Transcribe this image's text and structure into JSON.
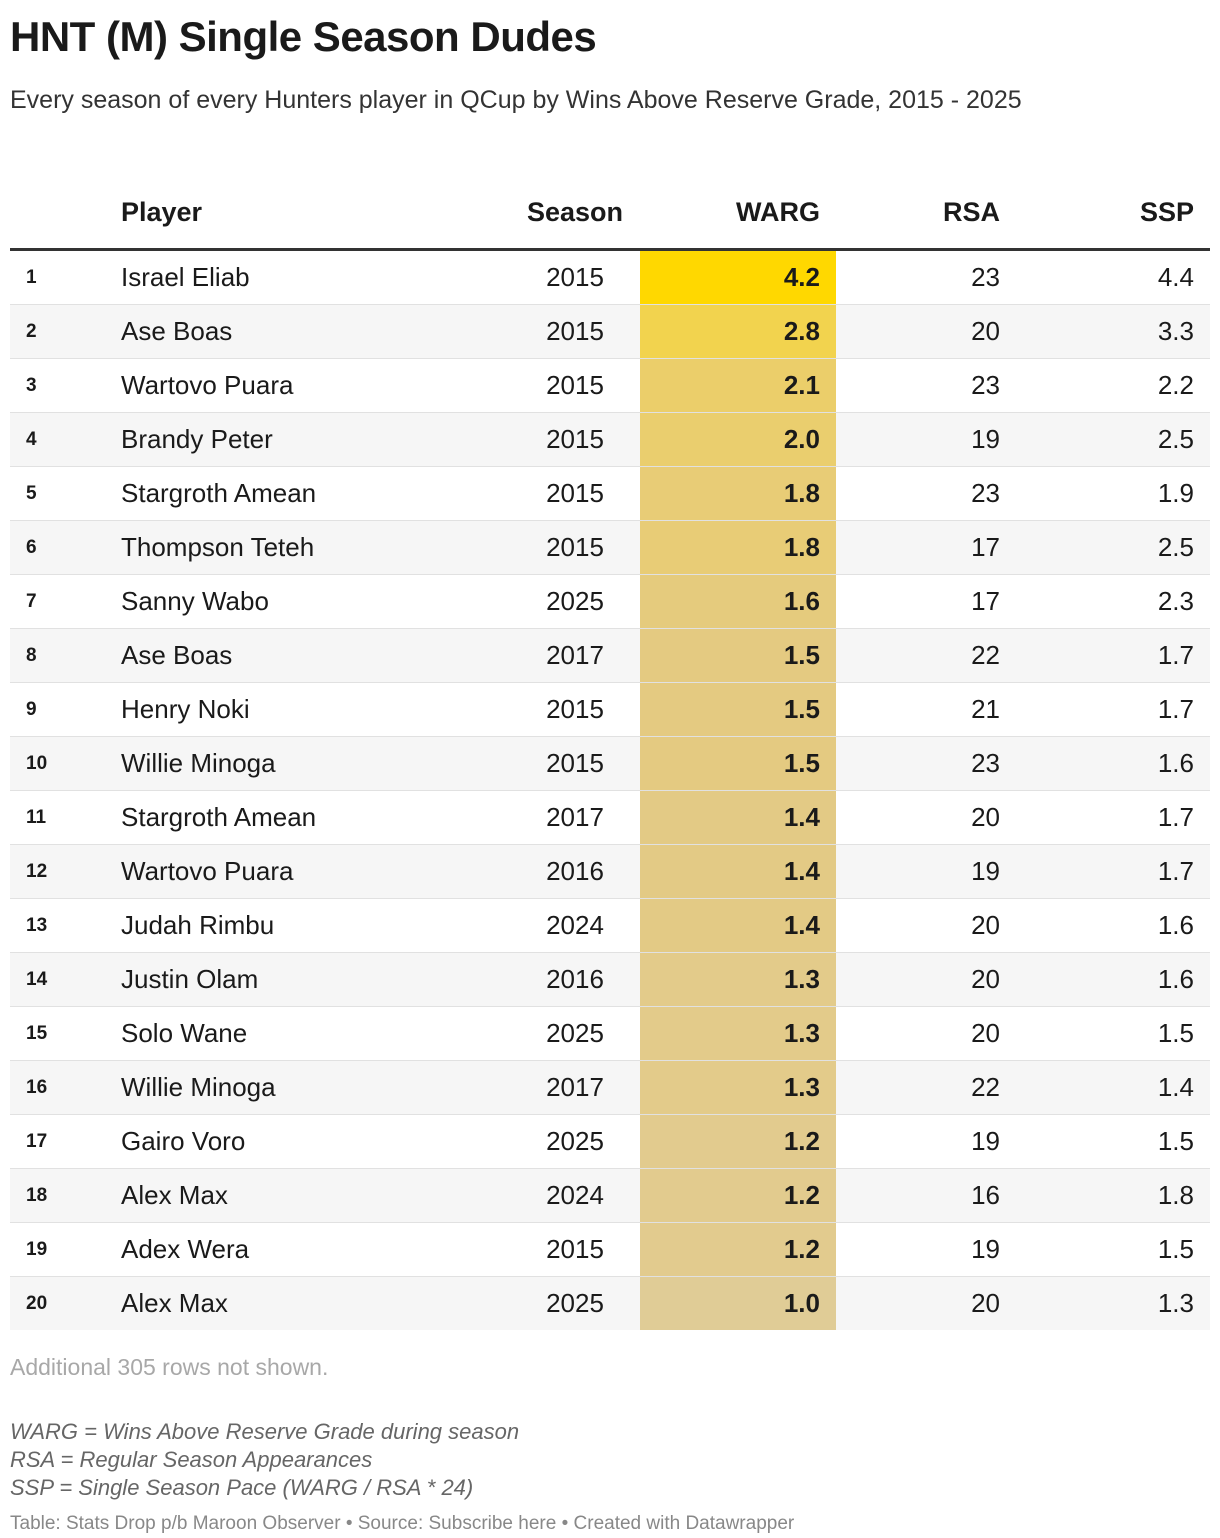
{
  "title": "HNT (M) Single Season Dudes",
  "subtitle": "Every season of every Hunters player in QCup by Wins Above Reserve Grade, 2015 - 2025",
  "note": "Additional 305 rows not shown.",
  "definitions": [
    "WARG = Wins Above Reserve Grade during season",
    "RSA = Regular Season Appearances",
    "SSP = Single Season Pace (WARG / RSA * 24)"
  ],
  "credit": "Table: Stats Drop p/b Maroon Observer • Source: Subscribe here • Created with Datawrapper",
  "colors": {
    "warg_max": "#ffd800",
    "warg_high": "#f2d350",
    "warg_mid": "#e4ca82",
    "warg_min": "#e0cc96",
    "header_rule": "#333333",
    "row_alt": "#f6f6f6"
  },
  "chart_data": {
    "type": "table",
    "columns": [
      "",
      "Player",
      "Season",
      "WARG",
      "RSA",
      "SSP"
    ],
    "rows": [
      {
        "rank": "1",
        "player": "Israel Eliab",
        "season": "2015",
        "warg": "4.2",
        "rsa": "23",
        "ssp": "4.4"
      },
      {
        "rank": "2",
        "player": "Ase Boas",
        "season": "2015",
        "warg": "2.8",
        "rsa": "20",
        "ssp": "3.3"
      },
      {
        "rank": "3",
        "player": "Wartovo Puara",
        "season": "2015",
        "warg": "2.1",
        "rsa": "23",
        "ssp": "2.2"
      },
      {
        "rank": "4",
        "player": "Brandy Peter",
        "season": "2015",
        "warg": "2.0",
        "rsa": "19",
        "ssp": "2.5"
      },
      {
        "rank": "5",
        "player": "Stargroth Amean",
        "season": "2015",
        "warg": "1.8",
        "rsa": "23",
        "ssp": "1.9"
      },
      {
        "rank": "6",
        "player": "Thompson Teteh",
        "season": "2015",
        "warg": "1.8",
        "rsa": "17",
        "ssp": "2.5"
      },
      {
        "rank": "7",
        "player": "Sanny Wabo",
        "season": "2025",
        "warg": "1.6",
        "rsa": "17",
        "ssp": "2.3"
      },
      {
        "rank": "8",
        "player": "Ase Boas",
        "season": "2017",
        "warg": "1.5",
        "rsa": "22",
        "ssp": "1.7"
      },
      {
        "rank": "9",
        "player": "Henry Noki",
        "season": "2015",
        "warg": "1.5",
        "rsa": "21",
        "ssp": "1.7"
      },
      {
        "rank": "10",
        "player": "Willie Minoga",
        "season": "2015",
        "warg": "1.5",
        "rsa": "23",
        "ssp": "1.6"
      },
      {
        "rank": "11",
        "player": "Stargroth Amean",
        "season": "2017",
        "warg": "1.4",
        "rsa": "20",
        "ssp": "1.7"
      },
      {
        "rank": "12",
        "player": "Wartovo Puara",
        "season": "2016",
        "warg": "1.4",
        "rsa": "19",
        "ssp": "1.7"
      },
      {
        "rank": "13",
        "player": "Judah Rimbu",
        "season": "2024",
        "warg": "1.4",
        "rsa": "20",
        "ssp": "1.6"
      },
      {
        "rank": "14",
        "player": "Justin Olam",
        "season": "2016",
        "warg": "1.3",
        "rsa": "20",
        "ssp": "1.6"
      },
      {
        "rank": "15",
        "player": "Solo Wane",
        "season": "2025",
        "warg": "1.3",
        "rsa": "20",
        "ssp": "1.5"
      },
      {
        "rank": "16",
        "player": "Willie Minoga",
        "season": "2017",
        "warg": "1.3",
        "rsa": "22",
        "ssp": "1.4"
      },
      {
        "rank": "17",
        "player": "Gairo Voro",
        "season": "2025",
        "warg": "1.2",
        "rsa": "19",
        "ssp": "1.5"
      },
      {
        "rank": "18",
        "player": "Alex Max",
        "season": "2024",
        "warg": "1.2",
        "rsa": "16",
        "ssp": "1.8"
      },
      {
        "rank": "19",
        "player": "Adex Wera",
        "season": "2015",
        "warg": "1.2",
        "rsa": "19",
        "ssp": "1.5"
      },
      {
        "rank": "20",
        "player": "Alex Max",
        "season": "2025",
        "warg": "1.0",
        "rsa": "20",
        "ssp": "1.3"
      }
    ]
  }
}
